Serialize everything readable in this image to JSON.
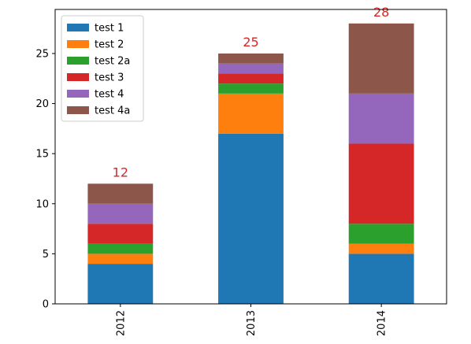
{
  "chart_data": {
    "type": "bar",
    "stacked": true,
    "categories": [
      "2012",
      "2013",
      "2014"
    ],
    "series": [
      {
        "name": "test 1",
        "color": "#1f77b4",
        "values": [
          4,
          17,
          5
        ]
      },
      {
        "name": "test 2",
        "color": "#ff7f0e",
        "values": [
          1,
          4,
          1
        ]
      },
      {
        "name": "test 2a",
        "color": "#2ca02c",
        "values": [
          1,
          1,
          2
        ]
      },
      {
        "name": "test 3",
        "color": "#d62728",
        "values": [
          2,
          1,
          8
        ]
      },
      {
        "name": "test 4",
        "color": "#9467bd",
        "values": [
          2,
          1,
          5
        ]
      },
      {
        "name": "test 4a",
        "color": "#8c564b",
        "values": [
          2,
          1,
          7
        ]
      }
    ],
    "totals": [
      "12",
      "25",
      "28"
    ],
    "total_label_color": "#d62728",
    "ylim": [
      0,
      29.4
    ],
    "yticks": [
      0,
      5,
      10,
      15,
      20,
      25
    ],
    "legend_position": "top-left",
    "grid": false
  }
}
